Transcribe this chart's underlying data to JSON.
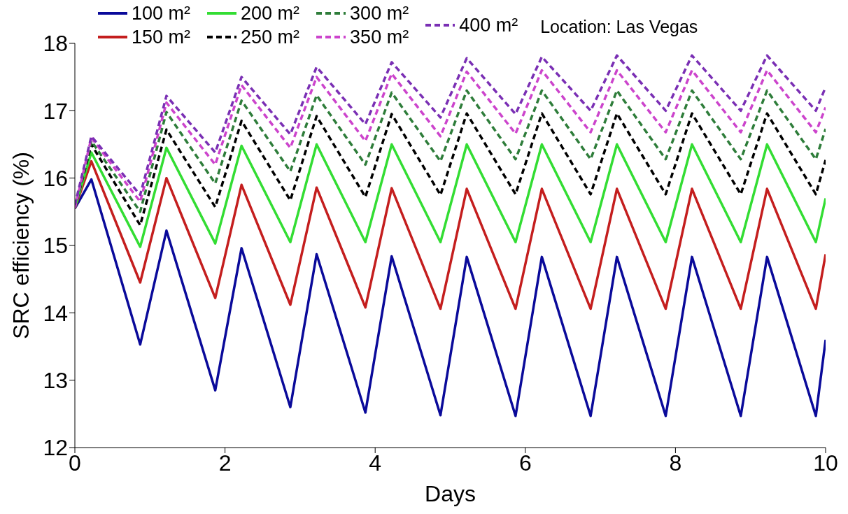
{
  "chart_data": {
    "type": "line",
    "xlabel": "Days",
    "ylabel": "SRC efficiency (%)",
    "annotations": [
      "Location: Las Vegas"
    ],
    "x": [
      0,
      0.22,
      0.87,
      1.22,
      1.87,
      2.22,
      2.87,
      3.22,
      3.87,
      4.22,
      4.87,
      5.22,
      5.87,
      6.22,
      6.87,
      7.22,
      7.87,
      8.22,
      8.87,
      9.22,
      9.87,
      10
    ],
    "xlim": [
      0,
      10
    ],
    "xticks": [
      0,
      2,
      4,
      6,
      8,
      10
    ],
    "ylim": [
      12,
      18
    ],
    "yticks": [
      12,
      13,
      14,
      15,
      16,
      17,
      18
    ],
    "grid": false,
    "legend": "top",
    "marker": "none",
    "series": [
      {
        "name": "100 m²",
        "color": "#0a0a9a",
        "line_style": "solid",
        "values": [
          15.55,
          15.98,
          13.53,
          15.22,
          12.85,
          14.96,
          12.6,
          14.87,
          12.52,
          14.84,
          12.48,
          14.83,
          12.47,
          14.83,
          12.47,
          14.83,
          12.47,
          14.83,
          12.47,
          14.83,
          12.47,
          13.6
        ]
      },
      {
        "name": "150 m²",
        "color": "#c41e1e",
        "line_style": "solid",
        "values": [
          15.55,
          16.25,
          14.45,
          16.0,
          14.22,
          15.9,
          14.12,
          15.86,
          14.08,
          15.85,
          14.06,
          15.84,
          14.06,
          15.84,
          14.06,
          15.84,
          14.06,
          15.84,
          14.06,
          15.84,
          14.06,
          14.87
        ]
      },
      {
        "name": "200 m²",
        "color": "#33dd33",
        "line_style": "solid",
        "values": [
          15.55,
          16.38,
          14.98,
          16.45,
          15.03,
          16.48,
          15.05,
          16.5,
          15.05,
          16.5,
          15.05,
          16.5,
          15.05,
          16.5,
          15.05,
          16.5,
          15.05,
          16.5,
          15.05,
          16.5,
          15.05,
          15.7
        ]
      },
      {
        "name": "250 m²",
        "color": "#000000",
        "line_style": "dashed",
        "values": [
          15.55,
          16.5,
          15.3,
          16.72,
          15.57,
          16.85,
          15.67,
          16.92,
          15.72,
          16.95,
          15.75,
          16.96,
          15.76,
          16.96,
          15.76,
          16.96,
          15.76,
          16.96,
          15.76,
          16.96,
          15.76,
          16.27
        ]
      },
      {
        "name": "300 m²",
        "color": "#2e7d3a",
        "line_style": "dashed",
        "values": [
          15.55,
          16.55,
          15.5,
          16.98,
          15.92,
          17.15,
          16.1,
          17.23,
          16.2,
          17.27,
          16.25,
          17.3,
          16.28,
          17.3,
          16.28,
          17.3,
          16.28,
          17.3,
          16.28,
          17.3,
          16.28,
          16.73
        ]
      },
      {
        "name": "350 m²",
        "color": "#cc44cc",
        "line_style": "dashed",
        "values": [
          15.55,
          16.6,
          15.65,
          17.12,
          16.2,
          17.38,
          16.45,
          17.5,
          16.55,
          17.55,
          16.62,
          17.58,
          16.66,
          17.6,
          16.68,
          17.6,
          16.68,
          17.6,
          16.68,
          17.6,
          16.68,
          17.05
        ]
      },
      {
        "name": "400 m²",
        "color": "#7a2fb4",
        "line_style": "dashed",
        "values": [
          15.6,
          16.62,
          15.75,
          17.22,
          16.38,
          17.5,
          16.65,
          17.65,
          16.8,
          17.72,
          16.9,
          17.78,
          16.95,
          17.8,
          17.0,
          17.82,
          17.0,
          17.82,
          17.0,
          17.82,
          17.0,
          17.35
        ]
      }
    ]
  }
}
